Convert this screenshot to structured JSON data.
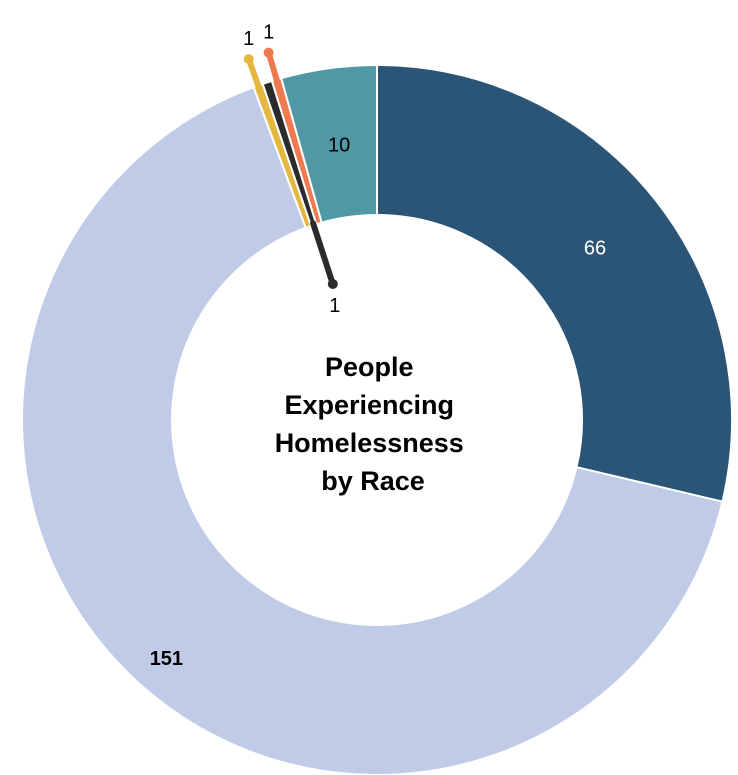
{
  "chart_data": {
    "type": "pie",
    "variant": "donut",
    "title_lines": [
      "People",
      "Experiencing",
      "Homelessness",
      "by Race"
    ],
    "series": [
      {
        "value": 66,
        "label": "66",
        "color": "#2b5576",
        "label_color": "#ffffff",
        "label_weight": "normal",
        "callout": false
      },
      {
        "value": 151,
        "label": "151",
        "color": "#c0cbe8",
        "label_color": "#000000",
        "label_weight": "bold",
        "callout": false
      },
      {
        "value": 1,
        "label": "1",
        "color": "#e4b840",
        "label_color": "#000000",
        "label_weight": "normal",
        "callout": true,
        "callout_side": "outer",
        "dot_color": "#e4b840"
      },
      {
        "value": 1,
        "label": "1",
        "color": "#2b2b2b",
        "label_color": "#000000",
        "label_weight": "normal",
        "callout": true,
        "callout_side": "inner",
        "dot_color": "#2b2b2b"
      },
      {
        "value": 1,
        "label": "1",
        "color": "#f07a50",
        "label_color": "#000000",
        "label_weight": "normal",
        "callout": true,
        "callout_side": "outer",
        "dot_color": "#f07a50"
      },
      {
        "value": 10,
        "label": "10",
        "color": "#5098a4",
        "label_color": "#000000",
        "label_weight": "normal",
        "callout": false
      }
    ],
    "legend": "none",
    "start": "top",
    "direction": "clockwise"
  }
}
